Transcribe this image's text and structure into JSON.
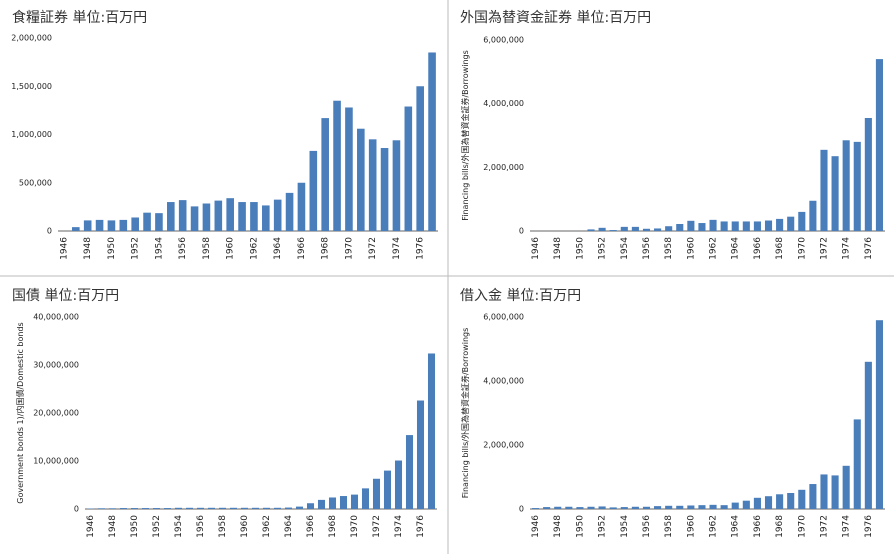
{
  "chart_data": [
    {
      "type": "bar",
      "title": "食糧証券  単位:百万円",
      "color": "#4a7ebb",
      "grid": false,
      "categories": [
        "1946",
        null,
        "1948",
        null,
        "1950",
        null,
        "1952",
        null,
        "1954",
        null,
        "1956",
        null,
        "1958",
        null,
        "1960",
        null,
        "1962",
        null,
        "1964",
        null,
        "1966",
        null,
        "1968",
        null,
        "1970",
        null,
        "1972",
        null,
        "1974",
        null,
        "1976",
        null
      ],
      "values": [
        0,
        40000,
        110000,
        115000,
        110000,
        115000,
        140000,
        190000,
        185000,
        300000,
        320000,
        255000,
        285000,
        315000,
        340000,
        300000,
        300000,
        265000,
        325000,
        395000,
        500000,
        830000,
        1170000,
        1350000,
        1280000,
        1060000,
        950000,
        860000,
        940000,
        1290000,
        1500000,
        1850000
      ],
      "ylim": [
        0,
        2000000
      ],
      "yticks": [
        0,
        {
          "value": 500000,
          "label": "500,000"
        },
        {
          "value": 1000000,
          "label": "1,000,000"
        },
        {
          "value": 1500000,
          "label": "1,500,000"
        },
        {
          "value": 2000000,
          "label": "2,000,000"
        }
      ]
    },
    {
      "type": "bar",
      "title": "外国為替資金証券  単位:百万円",
      "y_label": "Financing bills/外国為替資金証券/Borrowings",
      "color": "#4a7ebb",
      "grid": false,
      "categories": [
        "1946",
        null,
        "1948",
        null,
        "1950",
        null,
        "1952",
        null,
        "1954",
        null,
        "1956",
        null,
        "1958",
        null,
        "1960",
        null,
        "1962",
        null,
        "1964",
        null,
        "1966",
        null,
        "1968",
        null,
        "1970",
        null,
        "1972",
        null,
        "1974",
        null,
        "1976",
        null
      ],
      "values": [
        0,
        0,
        0,
        0,
        0,
        50000,
        100000,
        30000,
        130000,
        130000,
        70000,
        80000,
        150000,
        220000,
        320000,
        250000,
        350000,
        300000,
        300000,
        300000,
        300000,
        330000,
        380000,
        450000,
        600000,
        950000,
        2550000,
        2350000,
        2850000,
        2800000,
        3550000,
        5400000
      ],
      "ylim": [
        0,
        6000000
      ],
      "yticks": [
        0,
        {
          "value": 2000000,
          "label": "2,000,000"
        },
        {
          "value": 4000000,
          "label": "4,000,000"
        },
        {
          "value": 6000000,
          "label": "6,000,000"
        }
      ]
    },
    {
      "type": "bar",
      "title": "国債  単位:百万円",
      "y_label": "Government bonds  1)/内国債/Domestic bonds",
      "color": "#4a7ebb",
      "grid": false,
      "categories": [
        "1946",
        null,
        "1948",
        null,
        "1950",
        null,
        "1952",
        null,
        "1954",
        null,
        "1956",
        null,
        "1958",
        null,
        "1960",
        null,
        "1962",
        null,
        "1964",
        null,
        "1966",
        null,
        "1968",
        null,
        "1970",
        null,
        "1972",
        null,
        "1974",
        null,
        "1976",
        null
      ],
      "values": [
        100000,
        150000,
        150000,
        200000,
        200000,
        200000,
        200000,
        200000,
        250000,
        250000,
        250000,
        250000,
        250000,
        250000,
        250000,
        250000,
        250000,
        250000,
        300000,
        500000,
        1200000,
        1900000,
        2400000,
        2700000,
        3000000,
        4300000,
        6300000,
        8000000,
        10100000,
        15400000,
        22600000,
        32400000
      ],
      "ylim": [
        0,
        40000000
      ],
      "yticks": [
        0,
        {
          "value": 10000000,
          "label": "10,000,000"
        },
        {
          "value": 20000000,
          "label": "20,000,000"
        },
        {
          "value": 30000000,
          "label": "30,000,000"
        },
        {
          "value": 40000000,
          "label": "40,000,000"
        }
      ]
    },
    {
      "type": "bar",
      "title": "借入金  単位:百万円",
      "y_label": "Financing bills/外国為替資金証券/Borrowings",
      "color": "#4a7ebb",
      "grid": false,
      "categories": [
        "1946",
        null,
        "1948",
        null,
        "1950",
        null,
        "1952",
        null,
        "1954",
        null,
        "1956",
        null,
        "1958",
        null,
        "1960",
        null,
        "1962",
        null,
        "1964",
        null,
        "1966",
        null,
        "1968",
        null,
        "1970",
        null,
        "1972",
        null,
        "1974",
        null,
        "1976",
        null
      ],
      "values": [
        30000,
        60000,
        70000,
        70000,
        60000,
        70000,
        80000,
        50000,
        60000,
        70000,
        70000,
        90000,
        100000,
        100000,
        110000,
        120000,
        130000,
        120000,
        200000,
        260000,
        350000,
        400000,
        460000,
        500000,
        600000,
        780000,
        1080000,
        1050000,
        1350000,
        2800000,
        4600000,
        5900000
      ],
      "ylim": [
        0,
        6000000
      ],
      "yticks": [
        0,
        {
          "value": 2000000,
          "label": "2,000,000"
        },
        {
          "value": 4000000,
          "label": "4,000,000"
        },
        {
          "value": 6000000,
          "label": "6,000,000"
        }
      ]
    }
  ]
}
